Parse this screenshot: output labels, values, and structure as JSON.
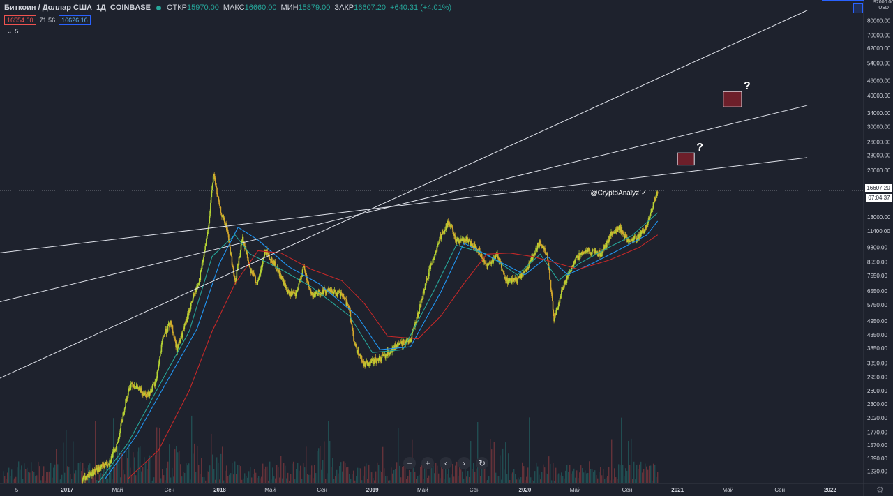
{
  "header": {
    "symbol": "Биткоин / Доллар США",
    "interval": "1Д",
    "exchange": "COINBASE",
    "open_label": "ОТКР",
    "open": "15970.00",
    "high_label": "МАКС",
    "high": "16660.00",
    "low_label": "МИН",
    "low": "15879.00",
    "close_label": "ЗАКР",
    "close": "16607.20",
    "change": "+640.31 (+4.01%)"
  },
  "badges": {
    "bid": "16554.60",
    "spread": "71.56",
    "ask": "16626.16"
  },
  "collapse_label": "5",
  "price_axis": {
    "currency": "USD",
    "top_label": "92000.00",
    "last_price": "16607.20",
    "countdown": "07:04:37"
  },
  "watermark": "@CryptoAnalyz ✓",
  "annotations": [
    {
      "label": "?"
    },
    {
      "label": "?"
    }
  ],
  "zoom_controls": {
    "minus": "−",
    "plus": "+",
    "left": "‹",
    "right": "›",
    "reset": "↻"
  },
  "colors": {
    "background": "#1e222d",
    "up": "#b5d334",
    "down": "#d4a72c",
    "ma_fast": "#26a69a",
    "ma_mid": "#2196f3",
    "ma_slow": "#c62828",
    "trendline": "#e0e3eb",
    "target_box_fill": "#6d1f2a",
    "target_box_stroke": "#e0e3eb"
  },
  "chart_data": {
    "type": "line",
    "title": "Биткоин / Доллар США, 1Д, COINBASE",
    "y_scale": "log",
    "ylim": [
      1100,
      92000
    ],
    "y_ticks": [
      "80000.00",
      "70000.00",
      "62000.00",
      "54000.00",
      "46000.00",
      "40000.00",
      "34000.00",
      "30000.00",
      "26000.00",
      "23000.00",
      "20000.00",
      "13000.00",
      "11400.00",
      "9800.00",
      "8550.00",
      "7550.00",
      "6550.00",
      "5750.00",
      "4950.00",
      "4350.00",
      "3850.00",
      "3350.00",
      "2950.00",
      "2600.00",
      "2300.00",
      "2020.00",
      "1770.00",
      "1570.00",
      "1390.00",
      "1230.00"
    ],
    "x_ticks": [
      "5",
      "2017",
      "Май",
      "Сен",
      "2018",
      "Май",
      "Сен",
      "2019",
      "Май",
      "Сен",
      "2020",
      "Май",
      "Сен",
      "2021",
      "Май",
      "Сен",
      "2022"
    ],
    "x_tick_years": [
      2016.67,
      2017.0,
      2017.33,
      2017.67,
      2018.0,
      2018.33,
      2018.67,
      2019.0,
      2019.33,
      2019.67,
      2020.0,
      2020.33,
      2020.67,
      2021.0,
      2021.33,
      2021.67,
      2022.0
    ],
    "price_series": {
      "name": "BTC/USD",
      "points": [
        [
          2017.1,
          1150
        ],
        [
          2017.2,
          1250
        ],
        [
          2017.28,
          1350
        ],
        [
          2017.33,
          1600
        ],
        [
          2017.38,
          2300
        ],
        [
          2017.42,
          2800
        ],
        [
          2017.48,
          2600
        ],
        [
          2017.53,
          2500
        ],
        [
          2017.58,
          2800
        ],
        [
          2017.63,
          4300
        ],
        [
          2017.68,
          4900
        ],
        [
          2017.72,
          3800
        ],
        [
          2017.77,
          4700
        ],
        [
          2017.82,
          6000
        ],
        [
          2017.87,
          7400
        ],
        [
          2017.92,
          11000
        ],
        [
          2017.96,
          19500
        ],
        [
          2018.0,
          14000
        ],
        [
          2018.05,
          11500
        ],
        [
          2018.1,
          7000
        ],
        [
          2018.15,
          10800
        ],
        [
          2018.2,
          8000
        ],
        [
          2018.25,
          7000
        ],
        [
          2018.3,
          9500
        ],
        [
          2018.37,
          8200
        ],
        [
          2018.45,
          6400
        ],
        [
          2018.5,
          6300
        ],
        [
          2018.55,
          8200
        ],
        [
          2018.6,
          6300
        ],
        [
          2018.7,
          6600
        ],
        [
          2018.8,
          6300
        ],
        [
          2018.85,
          5600
        ],
        [
          2018.88,
          4000
        ],
        [
          2018.95,
          3300
        ],
        [
          2019.05,
          3500
        ],
        [
          2019.15,
          3900
        ],
        [
          2019.25,
          4200
        ],
        [
          2019.3,
          5300
        ],
        [
          2019.37,
          7800
        ],
        [
          2019.45,
          11000
        ],
        [
          2019.5,
          12300
        ],
        [
          2019.55,
          10500
        ],
        [
          2019.62,
          10500
        ],
        [
          2019.7,
          9500
        ],
        [
          2019.75,
          8200
        ],
        [
          2019.82,
          9200
        ],
        [
          2019.87,
          7200
        ],
        [
          2019.95,
          7200
        ],
        [
          2020.02,
          8200
        ],
        [
          2020.1,
          10300
        ],
        [
          2020.15,
          9000
        ],
        [
          2020.19,
          5000
        ],
        [
          2020.25,
          6800
        ],
        [
          2020.33,
          8800
        ],
        [
          2020.4,
          9500
        ],
        [
          2020.5,
          9200
        ],
        [
          2020.57,
          11200
        ],
        [
          2020.62,
          11800
        ],
        [
          2020.67,
          10400
        ],
        [
          2020.75,
          10800
        ],
        [
          2020.8,
          12000
        ],
        [
          2020.84,
          14500
        ],
        [
          2020.87,
          16600
        ]
      ]
    },
    "series": [
      {
        "values": [
          [
            2017.2,
            1100
          ],
          [
            2017.4,
            1600
          ],
          [
            2017.6,
            2700
          ],
          [
            2017.8,
            4500
          ],
          [
            2017.95,
            9000
          ],
          [
            2018.1,
            11000
          ],
          [
            2018.2,
            9200
          ],
          [
            2018.4,
            8000
          ],
          [
            2018.6,
            6800
          ],
          [
            2018.85,
            5200
          ],
          [
            2019.0,
            3700
          ],
          [
            2019.2,
            3800
          ],
          [
            2019.4,
            6500
          ],
          [
            2019.55,
            10000
          ],
          [
            2019.75,
            9200
          ],
          [
            2019.95,
            7600
          ],
          [
            2020.1,
            9200
          ],
          [
            2020.22,
            7200
          ],
          [
            2020.35,
            8400
          ],
          [
            2020.55,
            9800
          ],
          [
            2020.7,
            10900
          ],
          [
            2020.87,
            13500
          ]
        ]
      },
      {
        "values": [
          [
            2017.25,
            1150
          ],
          [
            2017.45,
            1700
          ],
          [
            2017.65,
            2800
          ],
          [
            2017.85,
            4600
          ],
          [
            2018.0,
            8500
          ],
          [
            2018.12,
            11800
          ],
          [
            2018.25,
            10500
          ],
          [
            2018.45,
            8200
          ],
          [
            2018.65,
            7000
          ],
          [
            2018.9,
            5200
          ],
          [
            2019.05,
            3800
          ],
          [
            2019.25,
            3900
          ],
          [
            2019.45,
            6500
          ],
          [
            2019.6,
            10200
          ],
          [
            2019.8,
            8800
          ],
          [
            2020.0,
            7600
          ],
          [
            2020.15,
            9000
          ],
          [
            2020.28,
            7600
          ],
          [
            2020.45,
            8500
          ],
          [
            2020.62,
            9600
          ],
          [
            2020.8,
            11000
          ],
          [
            2020.87,
            12500
          ]
        ]
      },
      {
        "values": [
          [
            2017.4,
            1150
          ],
          [
            2017.6,
            1500
          ],
          [
            2017.8,
            2600
          ],
          [
            2017.95,
            4500
          ],
          [
            2018.1,
            7000
          ],
          [
            2018.25,
            9500
          ],
          [
            2018.4,
            9300
          ],
          [
            2018.6,
            8000
          ],
          [
            2018.8,
            7200
          ],
          [
            2018.95,
            5800
          ],
          [
            2019.1,
            4300
          ],
          [
            2019.3,
            4200
          ],
          [
            2019.45,
            5200
          ],
          [
            2019.6,
            7000
          ],
          [
            2019.75,
            9200
          ],
          [
            2019.9,
            9300
          ],
          [
            2020.05,
            9000
          ],
          [
            2020.2,
            8500
          ],
          [
            2020.35,
            8000
          ],
          [
            2020.55,
            8700
          ],
          [
            2020.75,
            9800
          ],
          [
            2020.87,
            11000
          ]
        ]
      }
    ],
    "volume": [],
    "trendlines": [
      {
        "from": [
          2016.55,
          2900
        ],
        "to": [
          2021.85,
          88000
        ]
      },
      {
        "from": [
          2016.55,
          5900
        ],
        "to": [
          2021.85,
          36500
        ]
      },
      {
        "from": [
          2016.55,
          9300
        ],
        "to": [
          2021.85,
          22500
        ]
      }
    ],
    "target_zones": [
      {
        "x": [
          2021.3,
          2021.42
        ],
        "y": [
          36000,
          41500
        ]
      },
      {
        "x": [
          2021.0,
          2021.11
        ],
        "y": [
          21000,
          23500
        ]
      }
    ],
    "current_price": 16607.2,
    "grid": false,
    "legend": "none"
  }
}
